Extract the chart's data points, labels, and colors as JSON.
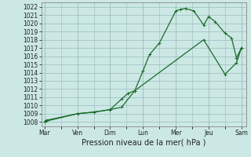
{
  "xlabel": "Pression niveau de la mer( hPa )",
  "ylim": [
    1007.5,
    1022.5
  ],
  "yticks": [
    1008,
    1009,
    1010,
    1011,
    1012,
    1013,
    1014,
    1015,
    1016,
    1017,
    1018,
    1019,
    1020,
    1021,
    1022
  ],
  "day_labels": [
    "Mar",
    "Ven",
    "Dim",
    "Lun",
    "Mer",
    "Jeu",
    "Sam"
  ],
  "bg_color": "#cce8e5",
  "grid_color": "#99bbbb",
  "line_color": "#1a6b2a",
  "line1_x": [
    0,
    0.05,
    1.0,
    1.5,
    2.0,
    2.35,
    2.55,
    2.75,
    3.0,
    3.2,
    3.5,
    4.0,
    4.15,
    4.3,
    4.55,
    4.85,
    5.0,
    5.2,
    5.5,
    5.7,
    5.85,
    6.0
  ],
  "line1_y": [
    1008.0,
    1008.2,
    1009.0,
    1009.2,
    1009.5,
    1010.8,
    1011.5,
    1011.8,
    1014.2,
    1016.2,
    1017.6,
    1021.5,
    1021.7,
    1021.8,
    1021.5,
    1019.8,
    1020.8,
    1020.2,
    1018.8,
    1018.2,
    1015.8,
    1017.0
  ],
  "line2_x": [
    0,
    0.05,
    1.0,
    1.5,
    2.0,
    2.35,
    2.75,
    4.85,
    5.5,
    5.85,
    6.0
  ],
  "line2_y": [
    1008.0,
    1008.1,
    1009.0,
    1009.2,
    1009.5,
    1009.8,
    1011.8,
    1018.0,
    1013.8,
    1015.2,
    1017.0
  ],
  "xlim": [
    -0.1,
    6.15
  ],
  "xlabel_fontsize": 7,
  "tick_fontsize": 5.5
}
